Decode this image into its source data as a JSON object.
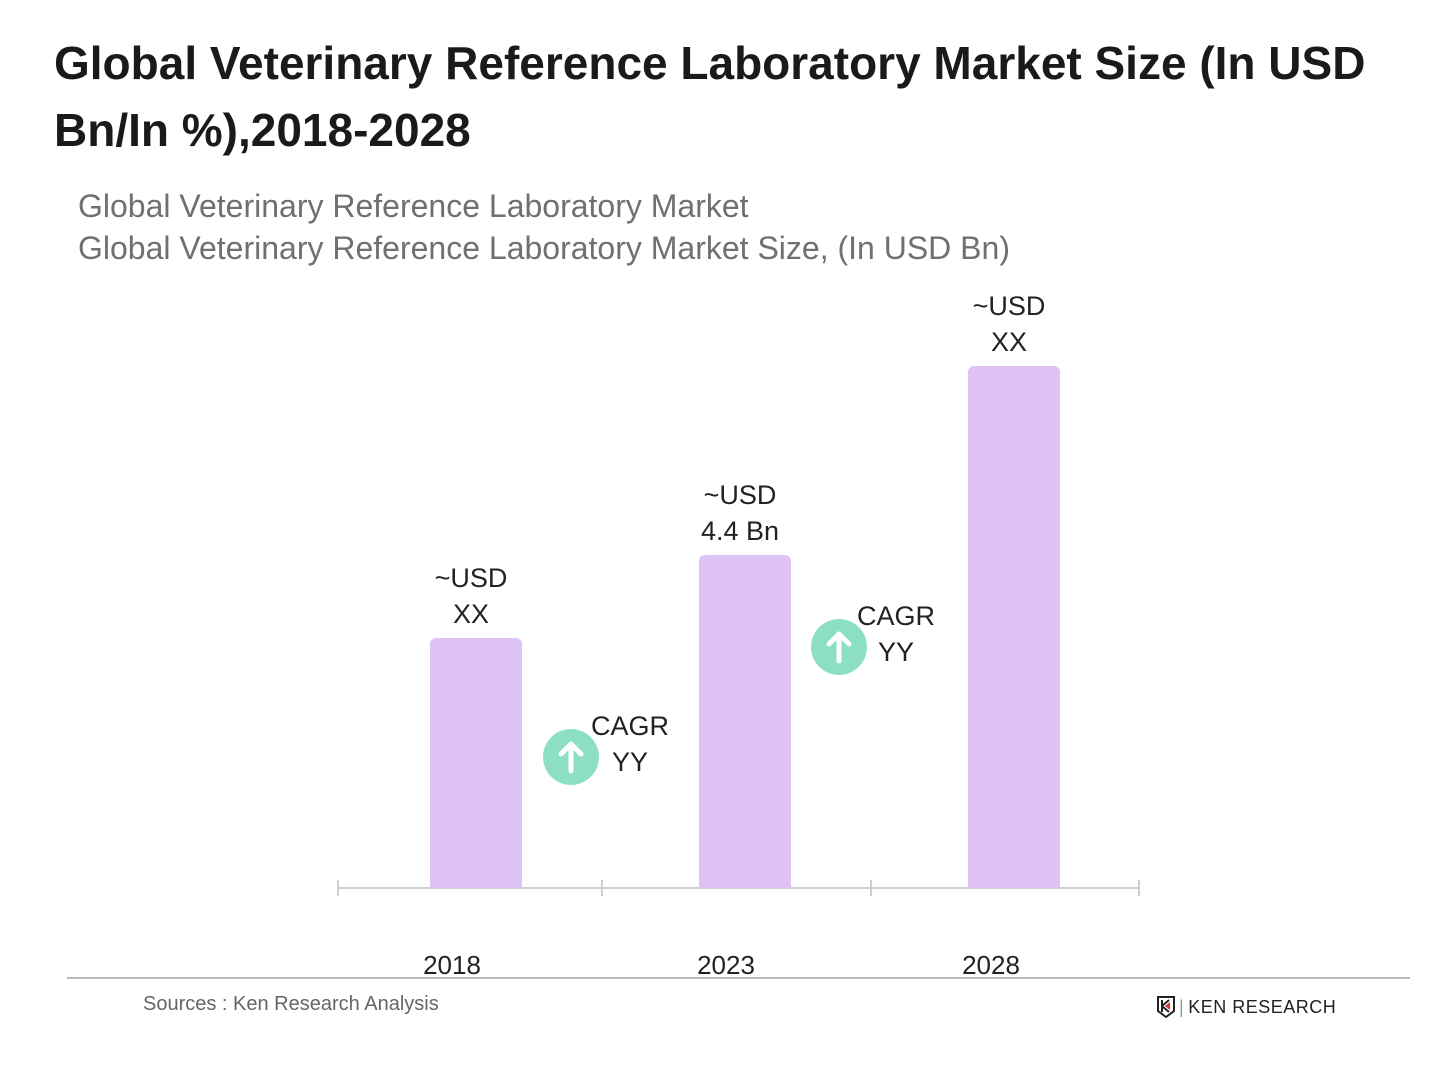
{
  "title": "Global Veterinary Reference Laboratory Market Size (In USD Bn/In %),2018-2028",
  "chart_data": {
    "type": "bar",
    "title": "Global Veterinary Reference Laboratory Market",
    "subtitle": "Global Veterinary Reference Laboratory Market Size, (In USD Bn)",
    "categories": [
      "2018",
      "2023",
      "2028"
    ],
    "values": [
      3.3,
      4.4,
      6.9
    ],
    "data_labels": [
      [
        "~USD",
        "XX"
      ],
      [
        "~USD",
        "4.4 Bn"
      ],
      [
        "~USD",
        "XX"
      ]
    ],
    "annotations": [
      {
        "label": "CAGR",
        "value": "YY",
        "icon": "arrow-up-circle",
        "between": [
          "2018",
          "2023"
        ]
      },
      {
        "label": "CAGR",
        "value": "YY",
        "icon": "arrow-up-circle",
        "between": [
          "2023",
          "2028"
        ]
      }
    ],
    "ylim": [
      0,
      7
    ],
    "grid": false,
    "bar_color": "#dfc2f6",
    "cagr_color": "#8cdfc5"
  },
  "footer": {
    "source": "Sources : Ken Research Analysis",
    "logo": "KEN RESEARCH"
  }
}
